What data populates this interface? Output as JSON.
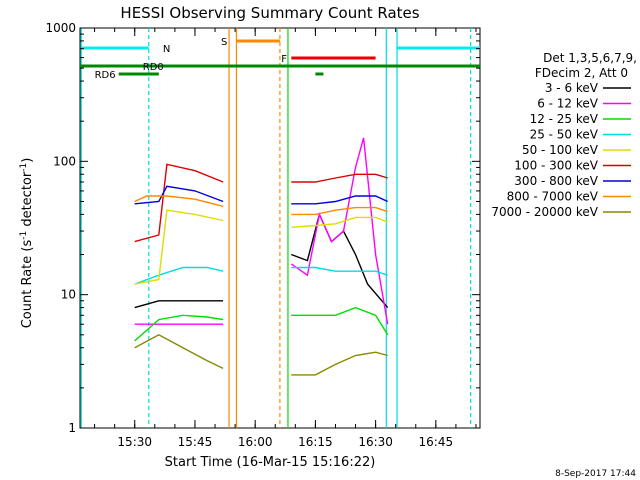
{
  "chart_data": {
    "type": "line",
    "title": "HESSI Observing Summary Count Rates",
    "xlabel": "Start Time (16-Mar-15 15:16:22)",
    "ylabel_main": "Count Rate (s",
    "ylabel_sup1": "-1",
    "ylabel_mid": " detector",
    "ylabel_sup2": "-1",
    "ylabel_end": ")",
    "y_scale": "log",
    "ylim": [
      1,
      1000
    ],
    "xlim": [
      "15:16:22",
      "16:56:00"
    ],
    "x_ticks": [
      "15:30",
      "15:45",
      "16:00",
      "16:15",
      "16:30",
      "16:45"
    ],
    "y_ticks": [
      "1",
      "10",
      "100",
      "1000"
    ],
    "footer_date": "8-Sep-2017 17:44",
    "legend": {
      "header1": "Det 1,3,5,6,7,9,",
      "header2": "FDecim 2, Att 0",
      "entries": [
        {
          "label": "3 - 6 keV",
          "color": "#000000"
        },
        {
          "label": "6 - 12 keV",
          "color": "#ff00ff"
        },
        {
          "label": "12 - 25 keV",
          "color": "#00dd00"
        },
        {
          "label": "25 - 50 keV",
          "color": "#00dddd"
        },
        {
          "label": "50 - 100 keV",
          "color": "#dddd00"
        },
        {
          "label": "100 - 300 keV",
          "color": "#dd0000"
        },
        {
          "label": "300 - 800 keV",
          "color": "#0000dd"
        },
        {
          "label": "800 - 7000 keV",
          "color": "#ff8800"
        },
        {
          "label": "7000 - 20000 keV",
          "color": "#888800"
        }
      ]
    },
    "flags": [
      {
        "label": "N",
        "color": "#00eeee"
      },
      {
        "label": "S",
        "color": "#ff8800"
      },
      {
        "label": "F",
        "color": "#ee0000"
      },
      {
        "label": "RD0",
        "color": "#008800"
      },
      {
        "label": "RD6",
        "color": "#008800"
      }
    ],
    "series": [
      {
        "name": "3 - 6 keV",
        "color": "#000000",
        "segments": [
          {
            "x": [
              "15:30:00",
              "15:36:00",
              "15:42:00",
              "15:48:00",
              "15:52:00"
            ],
            "y": [
              8,
              9,
              9,
              9,
              9
            ]
          },
          {
            "x": [
              "16:09:00",
              "16:13:00",
              "16:16:00",
              "16:19:00",
              "16:22:00",
              "16:25:00",
              "16:28:00",
              "16:33:00"
            ],
            "y": [
              20,
              18,
              40,
              25,
              30,
              20,
              12,
              8
            ]
          }
        ]
      },
      {
        "name": "6 - 12 keV",
        "color": "#ff00ff",
        "segments": [
          {
            "x": [
              "15:30:00",
              "15:36:00",
              "15:42:00",
              "15:48:00",
              "15:52:00"
            ],
            "y": [
              6,
              6,
              6,
              6,
              6
            ]
          },
          {
            "x": [
              "16:09:00",
              "16:13:00",
              "16:16:00",
              "16:19:00",
              "16:22:00",
              "16:25:00",
              "16:27:00",
              "16:30:00",
              "16:33:00"
            ],
            "y": [
              17,
              14,
              40,
              25,
              30,
              90,
              150,
              20,
              6
            ]
          }
        ]
      },
      {
        "name": "12 - 25 keV",
        "color": "#00dd00",
        "segments": [
          {
            "x": [
              "15:30:00",
              "15:36:00",
              "15:42:00",
              "15:48:00",
              "15:52:00"
            ],
            "y": [
              4.5,
              6.5,
              7,
              6.8,
              6.5
            ]
          },
          {
            "x": [
              "16:09:00",
              "16:15:00",
              "16:20:00",
              "16:25:00",
              "16:30:00",
              "16:33:00"
            ],
            "y": [
              7,
              7,
              7,
              8,
              7,
              5
            ]
          }
        ]
      },
      {
        "name": "25 - 50 keV",
        "color": "#00dddd",
        "segments": [
          {
            "x": [
              "15:30:00",
              "15:36:00",
              "15:42:00",
              "15:48:00",
              "15:52:00"
            ],
            "y": [
              12,
              14,
              16,
              16,
              15
            ]
          },
          {
            "x": [
              "16:09:00",
              "16:15:00",
              "16:20:00",
              "16:25:00",
              "16:30:00",
              "16:33:00"
            ],
            "y": [
              16,
              16,
              15,
              15,
              15,
              14
            ]
          }
        ]
      },
      {
        "name": "50 - 100 keV",
        "color": "#dddd00",
        "segments": [
          {
            "x": [
              "15:30:00",
              "15:36:00",
              "15:38:00",
              "15:45:00",
              "15:52:00"
            ],
            "y": [
              12,
              13,
              43,
              40,
              36
            ]
          },
          {
            "x": [
              "16:09:00",
              "16:15:00",
              "16:20:00",
              "16:25:00",
              "16:30:00",
              "16:33:00"
            ],
            "y": [
              32,
              33,
              34,
              38,
              38,
              35
            ]
          }
        ]
      },
      {
        "name": "100 - 300 keV",
        "color": "#dd0000",
        "segments": [
          {
            "x": [
              "15:30:00",
              "15:36:00",
              "15:38:00",
              "15:45:00",
              "15:52:00"
            ],
            "y": [
              25,
              28,
              95,
              85,
              70
            ]
          },
          {
            "x": [
              "16:09:00",
              "16:15:00",
              "16:20:00",
              "16:25:00",
              "16:30:00",
              "16:33:00"
            ],
            "y": [
              70,
              70,
              75,
              80,
              80,
              75
            ]
          }
        ]
      },
      {
        "name": "300 - 800 keV",
        "color": "#0000dd",
        "segments": [
          {
            "x": [
              "15:30:00",
              "15:36:00",
              "15:38:00",
              "15:45:00",
              "15:52:00"
            ],
            "y": [
              48,
              50,
              65,
              60,
              50
            ]
          },
          {
            "x": [
              "16:09:00",
              "16:15:00",
              "16:20:00",
              "16:25:00",
              "16:30:00",
              "16:33:00"
            ],
            "y": [
              48,
              48,
              50,
              55,
              55,
              50
            ]
          }
        ]
      },
      {
        "name": "800 - 7000 keV",
        "color": "#ff8800",
        "segments": [
          {
            "x": [
              "15:30:00",
              "15:33:00",
              "15:36:00",
              "15:38:00",
              "15:45:00",
              "15:52:00"
            ],
            "y": [
              50,
              55,
              55,
              55,
              52,
              46
            ]
          },
          {
            "x": [
              "16:09:00",
              "16:15:00",
              "16:20:00",
              "16:25:00",
              "16:30:00",
              "16:33:00"
            ],
            "y": [
              40,
              40,
              43,
              45,
              45,
              42
            ]
          }
        ]
      },
      {
        "name": "7000 - 20000 keV",
        "color": "#888800",
        "segments": [
          {
            "x": [
              "15:30:00",
              "15:36:00",
              "15:42:00",
              "15:48:00",
              "15:52:00"
            ],
            "y": [
              4,
              5,
              4,
              3.2,
              2.8
            ]
          },
          {
            "x": [
              "16:09:00",
              "16:15:00",
              "16:20:00",
              "16:25:00",
              "16:30:00",
              "16:33:00"
            ],
            "y": [
              2.5,
              2.5,
              3,
              3.5,
              3.7,
              3.5
            ]
          }
        ]
      }
    ]
  }
}
